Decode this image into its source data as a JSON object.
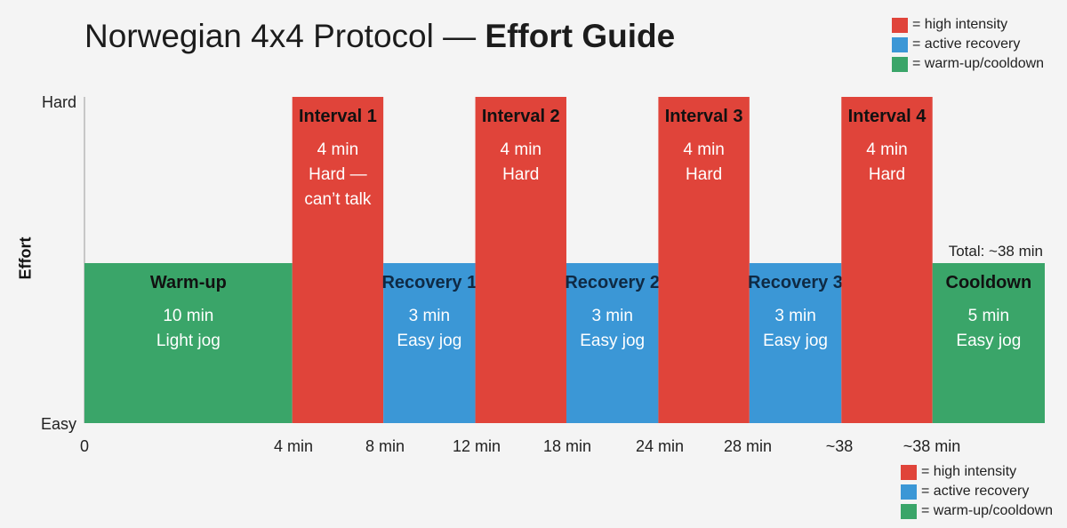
{
  "title": {
    "main": "Norwegian 4x4 Protocol — ",
    "emphasis": "Effort Guide"
  },
  "legend": [
    {
      "label": "= high intensity",
      "color": "#e0443a"
    },
    {
      "label": "= active recovery",
      "color": "#3b97d6"
    },
    {
      "label": "= warm-up/cooldown",
      "color": "#3aa569"
    }
  ],
  "colors": {
    "high": "#e0443a",
    "recovery": "#3b97d6",
    "easy": "#3aa569",
    "axis": "#9a9a9a"
  },
  "chart_data": {
    "type": "bar",
    "ylabel": "Effort",
    "y_categories": [
      "Easy",
      "Hard"
    ],
    "x_tick_labels": [
      "0",
      "4 min",
      "8 min",
      "12 min",
      "18 min",
      "24 min",
      "28 min",
      "~38",
      "~38 min"
    ],
    "total_annotation": "Total: ~38 min",
    "segments": [
      {
        "name": "Warm-up",
        "minutes": 10,
        "effort": "easy",
        "lines": [
          "10 min",
          "Light jog"
        ]
      },
      {
        "name": "Interval 1",
        "minutes": 4,
        "effort": "high",
        "lines": [
          "4 min",
          "Hard —",
          "can’t talk"
        ]
      },
      {
        "name": "Recovery 1",
        "minutes": 3,
        "effort": "recovery",
        "lines": [
          "3 min",
          "Easy jog"
        ]
      },
      {
        "name": "Interval 2",
        "minutes": 4,
        "effort": "high",
        "lines": [
          "4 min",
          "Hard"
        ]
      },
      {
        "name": "Recovery 2",
        "minutes": 3,
        "effort": "recovery",
        "lines": [
          "3 min",
          "Easy jog"
        ]
      },
      {
        "name": "Interval 3",
        "minutes": 4,
        "effort": "high",
        "lines": [
          "4 min",
          "Hard"
        ]
      },
      {
        "name": "Recovery 3",
        "minutes": 3,
        "effort": "recovery",
        "lines": [
          "3 min",
          "Easy jog"
        ]
      },
      {
        "name": "Interval 4",
        "minutes": 4,
        "effort": "high",
        "lines": [
          "4 min",
          "Hard"
        ]
      },
      {
        "name": "Cooldown",
        "minutes": 5,
        "effort": "easy",
        "lines": [
          "5 min",
          "Easy jog"
        ]
      }
    ]
  }
}
